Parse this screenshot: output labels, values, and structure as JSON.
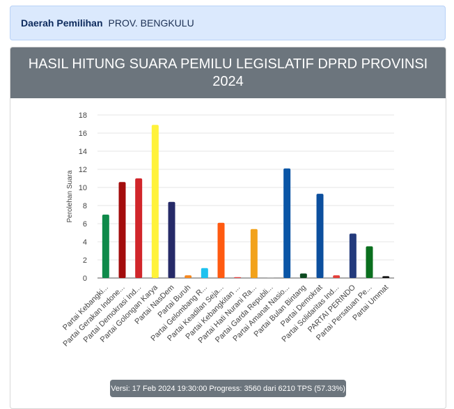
{
  "region": {
    "label": "Daerah Pemilihan",
    "value": "PROV. BENGKULU"
  },
  "header": {
    "title": "HASIL HITUNG SUARA PEMILU LEGISLATIF DPRD PROVINSI 2024"
  },
  "footer": {
    "progress_text": "Versi: 17 Feb 2024 19:30:00 Progress: 3560 dari 6210 TPS (57.33%)"
  },
  "chart_data": {
    "type": "bar",
    "title": "",
    "xlabel": "",
    "ylabel": "Perolehan Suara",
    "ylim": [
      0,
      18
    ],
    "yticks": [
      "0",
      "2",
      "4",
      "6",
      "8",
      "10",
      "12",
      "14",
      "16",
      "18"
    ],
    "grid": true,
    "legend": "none",
    "categories": [
      "Partai Kebangki...",
      "Partai Gerakan Indone...",
      "Partai Demokrasi Ind...",
      "Partai Golongan Karya",
      "Partai NasDem",
      "Partai Buruh",
      "Partai Gelombang R...",
      "Partai Keadilan Seja...",
      "Partai Kebangkitan ...",
      "Partai Hati Nurani Ra...",
      "Partai Garda Republi...",
      "Partai Amanat Nasio...",
      "Partai Bulan Bintang",
      "Partai Demokrat",
      "Partai Solidaritas Ind...",
      "PARTAI PERINDO",
      "Partai Persatuan Pe...",
      "Partai Ummat"
    ],
    "values": [
      7.0,
      10.6,
      11.0,
      16.9,
      8.4,
      0.3,
      1.1,
      6.1,
      0.1,
      5.4,
      0.05,
      12.1,
      0.5,
      9.3,
      0.3,
      4.9,
      3.5,
      0.2
    ],
    "colors": [
      "#0f8a4a",
      "#a30d0d",
      "#d1262b",
      "#fff23b",
      "#262a68",
      "#f7881f",
      "#1fc2ef",
      "#ff5a10",
      "#e84040",
      "#f2a21b",
      "#b5b5b5",
      "#0a55a6",
      "#0c4a20",
      "#0c4f9e",
      "#e43f3a",
      "#233a7c",
      "#0a6f1e",
      "#111111"
    ]
  }
}
